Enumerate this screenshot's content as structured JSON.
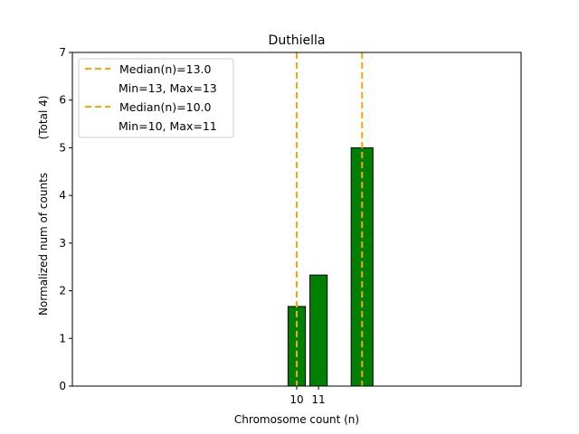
{
  "chart_data": {
    "type": "bar",
    "title": "Duthiella",
    "xlabel": "Chromosome count (n)",
    "ylabel": "Normalized num of counts",
    "ylabel_note": "(Total 4)",
    "xlim": [
      -0.3,
      20.3
    ],
    "ylim": [
      0,
      7
    ],
    "yticks": [
      0,
      1,
      2,
      3,
      4,
      5,
      6,
      7
    ],
    "xticks": [
      10,
      11
    ],
    "bars": [
      {
        "x": 10,
        "width": 0.8,
        "value": 1.67
      },
      {
        "x": 11,
        "width": 0.8,
        "value": 2.33
      },
      {
        "x": 13,
        "width": 1.0,
        "value": 5.0
      }
    ],
    "median_lines": [
      13.0,
      10.0
    ],
    "bar_color": "#008000",
    "median_color": "#FFA500",
    "legend": {
      "placement": "top-left",
      "entries": [
        {
          "label": "Median(n)=13.0",
          "sub": "Min=13, Max=13"
        },
        {
          "label": "Median(n)=10.0",
          "sub": "Min=10, Max=11"
        }
      ]
    }
  }
}
